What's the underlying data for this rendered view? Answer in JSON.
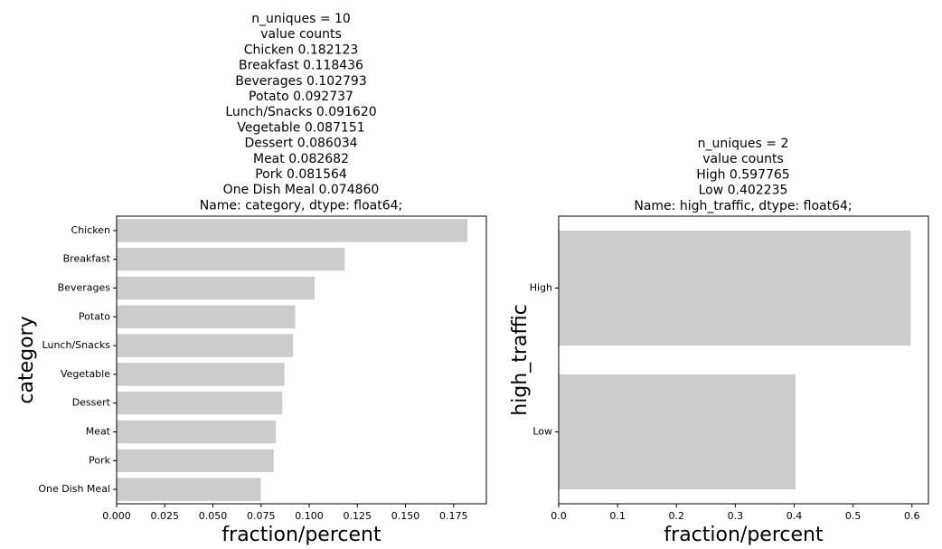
{
  "chart_data": [
    {
      "type": "bar",
      "orientation": "horizontal",
      "title_lines": [
        "n_uniques = 10",
        "value counts",
        "Chicken          0.182123",
        "Breakfast        0.118436",
        "Beverages        0.102793",
        "Potato           0.092737",
        "Lunch/Snacks     0.091620",
        "Vegetable        0.087151",
        "Dessert          0.086034",
        "Meat             0.082682",
        "Pork             0.081564",
        "One Dish Meal    0.074860",
        "Name: category, dtype: float64;"
      ],
      "categories": [
        "Chicken",
        "Breakfast",
        "Beverages",
        "Potato",
        "Lunch/Snacks",
        "Vegetable",
        "Dessert",
        "Meat",
        "Pork",
        "One Dish Meal"
      ],
      "values": [
        0.182123,
        0.118436,
        0.102793,
        0.092737,
        0.09162,
        0.087151,
        0.086034,
        0.082682,
        0.081564,
        0.07486
      ],
      "xlabel": "fraction/percent",
      "ylabel": "category",
      "xlim": [
        0,
        0.192
      ],
      "xticks": [
        0.0,
        0.025,
        0.05,
        0.075,
        0.1,
        0.125,
        0.15,
        0.175
      ],
      "xtick_labels": [
        "0.000",
        "0.025",
        "0.050",
        "0.075",
        "0.100",
        "0.125",
        "0.150",
        "0.175"
      ],
      "bar_color": "#cccccc",
      "grid": false
    },
    {
      "type": "bar",
      "orientation": "horizontal",
      "title_lines": [
        "n_uniques = 2",
        "value counts",
        "High     0.597765",
        "Low      0.402235",
        "Name: high_traffic, dtype: float64;"
      ],
      "categories": [
        "High",
        "Low"
      ],
      "values": [
        0.597765,
        0.402235
      ],
      "xlabel": "fraction/percent",
      "ylabel": "high_traffic",
      "xlim": [
        0,
        0.628
      ],
      "xticks": [
        0.0,
        0.1,
        0.2,
        0.3,
        0.4,
        0.5,
        0.6
      ],
      "xtick_labels": [
        "0.0",
        "0.1",
        "0.2",
        "0.3",
        "0.4",
        "0.5",
        "0.6"
      ],
      "bar_color": "#cccccc",
      "grid": false
    }
  ]
}
